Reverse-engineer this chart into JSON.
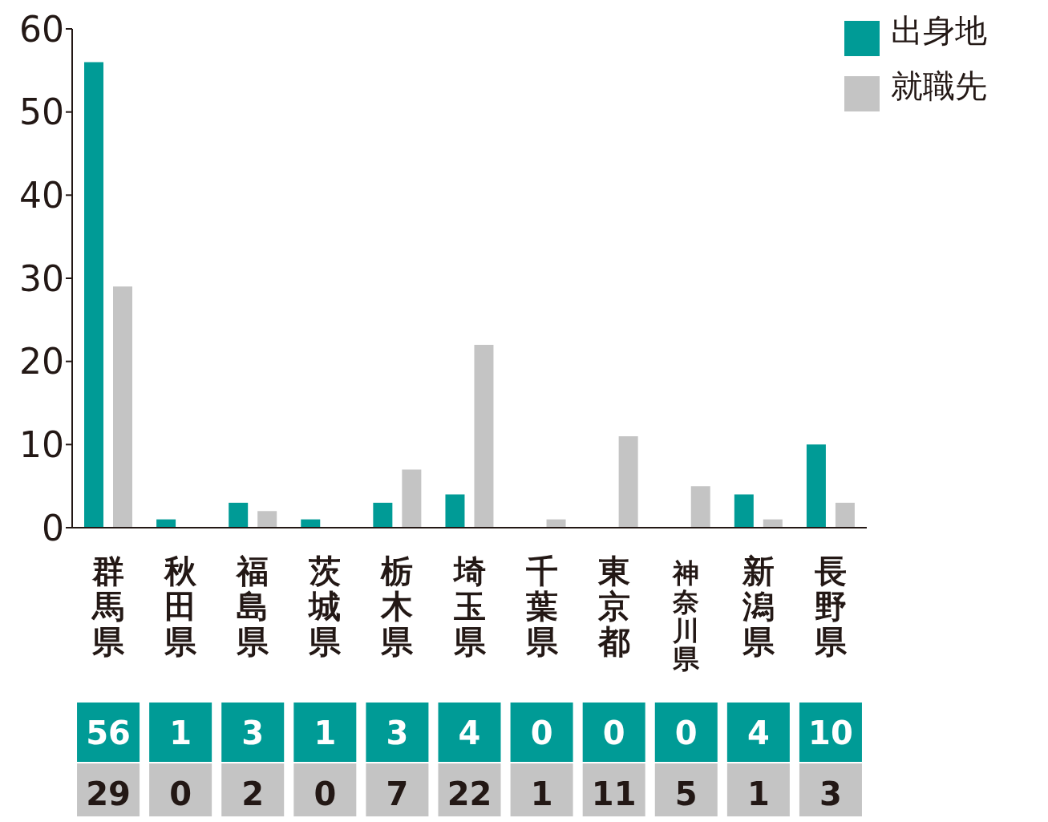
{
  "chart_data": {
    "type": "bar",
    "categories": [
      "群馬県",
      "秋田県",
      "福島県",
      "茨城県",
      "栃木県",
      "埼玉県",
      "千葉県",
      "東京都",
      "神奈川県",
      "新潟県",
      "長野県"
    ],
    "series": [
      {
        "name": "出身地",
        "color": "#009b96",
        "values": [
          56,
          1,
          3,
          1,
          3,
          4,
          0,
          0,
          0,
          4,
          10
        ]
      },
      {
        "name": "就職先",
        "color": "#c4c4c4",
        "values": [
          29,
          0,
          2,
          0,
          7,
          22,
          1,
          11,
          5,
          1,
          3
        ]
      }
    ],
    "ylim": [
      0,
      60
    ],
    "yticks": [
      0,
      10,
      20,
      30,
      40,
      50,
      60
    ],
    "grid": false,
    "legend": "top right",
    "data_labels": true
  }
}
